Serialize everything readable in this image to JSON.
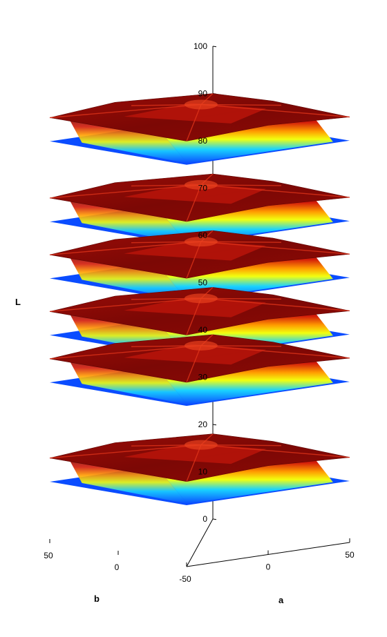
{
  "chart_data": {
    "type": "surface3d",
    "title": "",
    "xlabel": "a",
    "ylabel": "b",
    "zlabel": "L",
    "xlim": [
      -50,
      50
    ],
    "ylim": [
      -50,
      50
    ],
    "zlim": [
      0,
      100
    ],
    "x_ticks": [
      "-50",
      "0",
      "50"
    ],
    "y_ticks": [
      "50",
      "0"
    ],
    "z_ticks": [
      "0",
      "10",
      "20",
      "30",
      "40",
      "50",
      "60",
      "70",
      "80",
      "90",
      "100"
    ],
    "grid": false,
    "colormap": "jet",
    "layers": [
      {
        "base_L": 85,
        "top_L": 90
      },
      {
        "base_L": 68,
        "top_L": 73
      },
      {
        "base_L": 56,
        "top_L": 61
      },
      {
        "base_L": 44,
        "top_L": 49
      },
      {
        "base_L": 34,
        "top_L": 39
      },
      {
        "base_L": 13,
        "top_L": 18
      }
    ]
  },
  "colors": {
    "low": "#0a4cff",
    "cyan": "#19d2ff",
    "yellow": "#f2ff0f",
    "orange": "#ff9a00",
    "red": "#d21a0a",
    "dark_red": "#8a0a06"
  }
}
